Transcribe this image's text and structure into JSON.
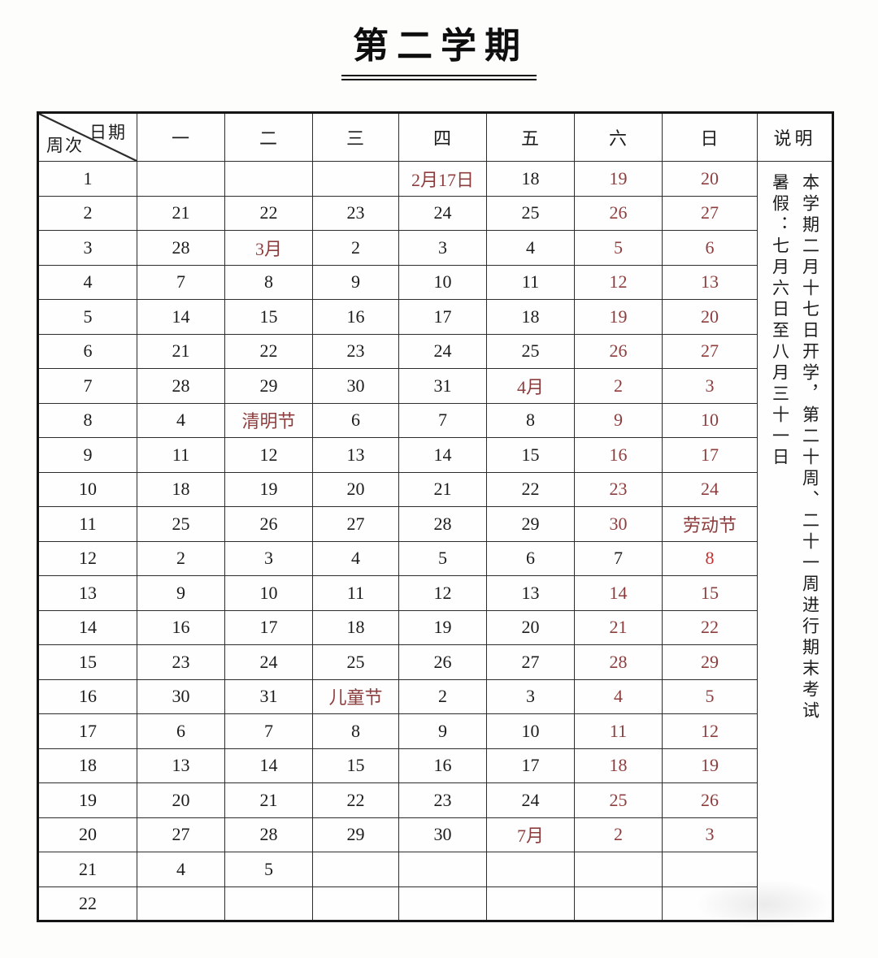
{
  "page": {
    "title": "第二学期"
  },
  "colors": {
    "holiday_red": "#8d3d3d",
    "special_red": "#c23232",
    "text_black": "#1c1c1c"
  },
  "table": {
    "corner": {
      "top_right": "日期",
      "bottom_left": "周次"
    },
    "day_headers": [
      "一",
      "二",
      "三",
      "四",
      "五",
      "六",
      "日"
    ],
    "notes_header": "说明",
    "notes_lines": [
      "本学期二月十七日开学，第二十周、二十一周进行期末考试",
      "暑假：七月六日至八月三十一日"
    ],
    "weeks": [
      {
        "week": "1",
        "days": [
          {
            "t": ""
          },
          {
            "t": ""
          },
          {
            "t": ""
          },
          {
            "t": "2月17日",
            "c": "red"
          },
          {
            "t": "18"
          },
          {
            "t": "19",
            "c": "red"
          },
          {
            "t": "20",
            "c": "red"
          }
        ]
      },
      {
        "week": "2",
        "days": [
          {
            "t": "21"
          },
          {
            "t": "22"
          },
          {
            "t": "23"
          },
          {
            "t": "24"
          },
          {
            "t": "25"
          },
          {
            "t": "26",
            "c": "red"
          },
          {
            "t": "27",
            "c": "red"
          }
        ]
      },
      {
        "week": "3",
        "days": [
          {
            "t": "28"
          },
          {
            "t": "3月",
            "c": "red"
          },
          {
            "t": "2"
          },
          {
            "t": "3"
          },
          {
            "t": "4"
          },
          {
            "t": "5",
            "c": "red"
          },
          {
            "t": "6",
            "c": "red"
          }
        ]
      },
      {
        "week": "4",
        "days": [
          {
            "t": "7"
          },
          {
            "t": "8"
          },
          {
            "t": "9"
          },
          {
            "t": "10"
          },
          {
            "t": "11"
          },
          {
            "t": "12",
            "c": "red"
          },
          {
            "t": "13",
            "c": "red"
          }
        ]
      },
      {
        "week": "5",
        "days": [
          {
            "t": "14"
          },
          {
            "t": "15"
          },
          {
            "t": "16"
          },
          {
            "t": "17"
          },
          {
            "t": "18"
          },
          {
            "t": "19",
            "c": "red"
          },
          {
            "t": "20",
            "c": "red"
          }
        ]
      },
      {
        "week": "6",
        "days": [
          {
            "t": "21"
          },
          {
            "t": "22"
          },
          {
            "t": "23"
          },
          {
            "t": "24"
          },
          {
            "t": "25"
          },
          {
            "t": "26",
            "c": "red"
          },
          {
            "t": "27",
            "c": "red"
          }
        ]
      },
      {
        "week": "7",
        "days": [
          {
            "t": "28"
          },
          {
            "t": "29"
          },
          {
            "t": "30"
          },
          {
            "t": "31"
          },
          {
            "t": "4月",
            "c": "red"
          },
          {
            "t": "2",
            "c": "red"
          },
          {
            "t": "3",
            "c": "red"
          }
        ]
      },
      {
        "week": "8",
        "days": [
          {
            "t": "4"
          },
          {
            "t": "清明节",
            "c": "red"
          },
          {
            "t": "6"
          },
          {
            "t": "7"
          },
          {
            "t": "8"
          },
          {
            "t": "9",
            "c": "red"
          },
          {
            "t": "10",
            "c": "red"
          }
        ]
      },
      {
        "week": "9",
        "days": [
          {
            "t": "11"
          },
          {
            "t": "12"
          },
          {
            "t": "13"
          },
          {
            "t": "14"
          },
          {
            "t": "15"
          },
          {
            "t": "16",
            "c": "red"
          },
          {
            "t": "17",
            "c": "red"
          }
        ]
      },
      {
        "week": "10",
        "days": [
          {
            "t": "18"
          },
          {
            "t": "19"
          },
          {
            "t": "20"
          },
          {
            "t": "21"
          },
          {
            "t": "22"
          },
          {
            "t": "23",
            "c": "red"
          },
          {
            "t": "24",
            "c": "red"
          }
        ]
      },
      {
        "week": "11",
        "days": [
          {
            "t": "25"
          },
          {
            "t": "26"
          },
          {
            "t": "27"
          },
          {
            "t": "28"
          },
          {
            "t": "29"
          },
          {
            "t": "30",
            "c": "red"
          },
          {
            "t": "劳动节",
            "c": "red"
          }
        ]
      },
      {
        "week": "12",
        "days": [
          {
            "t": "2"
          },
          {
            "t": "3"
          },
          {
            "t": "4"
          },
          {
            "t": "5"
          },
          {
            "t": "6"
          },
          {
            "t": "7"
          },
          {
            "t": "8",
            "c": "bright-red"
          }
        ]
      },
      {
        "week": "13",
        "days": [
          {
            "t": "9"
          },
          {
            "t": "10"
          },
          {
            "t": "11"
          },
          {
            "t": "12"
          },
          {
            "t": "13"
          },
          {
            "t": "14",
            "c": "red"
          },
          {
            "t": "15",
            "c": "red"
          }
        ]
      },
      {
        "week": "14",
        "days": [
          {
            "t": "16"
          },
          {
            "t": "17"
          },
          {
            "t": "18"
          },
          {
            "t": "19"
          },
          {
            "t": "20"
          },
          {
            "t": "21",
            "c": "red"
          },
          {
            "t": "22",
            "c": "red"
          }
        ]
      },
      {
        "week": "15",
        "days": [
          {
            "t": "23"
          },
          {
            "t": "24"
          },
          {
            "t": "25"
          },
          {
            "t": "26"
          },
          {
            "t": "27"
          },
          {
            "t": "28",
            "c": "red"
          },
          {
            "t": "29",
            "c": "red"
          }
        ]
      },
      {
        "week": "16",
        "days": [
          {
            "t": "30"
          },
          {
            "t": "31"
          },
          {
            "t": "儿童节",
            "c": "red"
          },
          {
            "t": "2"
          },
          {
            "t": "3"
          },
          {
            "t": "4",
            "c": "red"
          },
          {
            "t": "5",
            "c": "red"
          }
        ]
      },
      {
        "week": "17",
        "days": [
          {
            "t": "6"
          },
          {
            "t": "7"
          },
          {
            "t": "8"
          },
          {
            "t": "9"
          },
          {
            "t": "10"
          },
          {
            "t": "11",
            "c": "red"
          },
          {
            "t": "12",
            "c": "red"
          }
        ]
      },
      {
        "week": "18",
        "days": [
          {
            "t": "13"
          },
          {
            "t": "14"
          },
          {
            "t": "15"
          },
          {
            "t": "16"
          },
          {
            "t": "17"
          },
          {
            "t": "18",
            "c": "red"
          },
          {
            "t": "19",
            "c": "red"
          }
        ]
      },
      {
        "week": "19",
        "days": [
          {
            "t": "20"
          },
          {
            "t": "21"
          },
          {
            "t": "22"
          },
          {
            "t": "23"
          },
          {
            "t": "24"
          },
          {
            "t": "25",
            "c": "red"
          },
          {
            "t": "26",
            "c": "red"
          }
        ]
      },
      {
        "week": "20",
        "days": [
          {
            "t": "27"
          },
          {
            "t": "28"
          },
          {
            "t": "29"
          },
          {
            "t": "30"
          },
          {
            "t": "7月",
            "c": "red"
          },
          {
            "t": "2",
            "c": "red"
          },
          {
            "t": "3",
            "c": "red"
          }
        ]
      },
      {
        "week": "21",
        "days": [
          {
            "t": "4"
          },
          {
            "t": "5"
          },
          {
            "t": ""
          },
          {
            "t": ""
          },
          {
            "t": ""
          },
          {
            "t": ""
          },
          {
            "t": ""
          }
        ]
      },
      {
        "week": "22",
        "days": [
          {
            "t": ""
          },
          {
            "t": ""
          },
          {
            "t": ""
          },
          {
            "t": ""
          },
          {
            "t": ""
          },
          {
            "t": ""
          },
          {
            "t": ""
          }
        ]
      }
    ]
  }
}
